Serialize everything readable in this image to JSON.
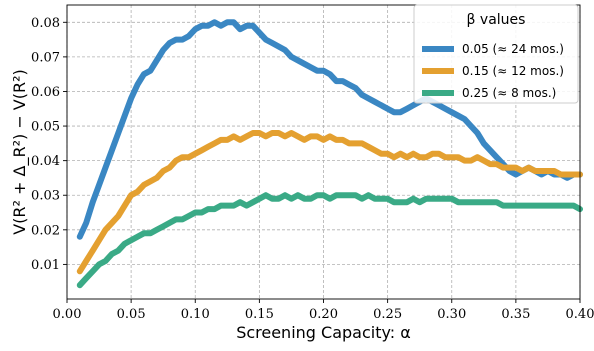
{
  "chart_data": {
    "type": "line",
    "title": "",
    "xlabel": "Screening Capacity: α",
    "ylabel": "V(R² + Δ_R²) − V(R²)",
    "xlim": [
      0.0,
      0.4
    ],
    "ylim": [
      0.0,
      0.085
    ],
    "xticks": [
      "0.00",
      "0.05",
      "0.10",
      "0.15",
      "0.20",
      "0.25",
      "0.30",
      "0.35",
      "0.40"
    ],
    "yticks": [
      "0.01",
      "0.02",
      "0.03",
      "0.04",
      "0.05",
      "0.06",
      "0.07",
      "0.08"
    ],
    "grid": true,
    "legend": {
      "title": "β values",
      "placement": "top-right",
      "entries": [
        "0.05 (≈ 24 mos.)",
        "0.15 (≈ 12 mos.)",
        "0.25 (≈ 8 mos.)"
      ]
    },
    "series": [
      {
        "name": "0.05 (≈ 24 mos.)",
        "color": "#3a87c3",
        "x": [
          0.01,
          0.015,
          0.02,
          0.025,
          0.03,
          0.035,
          0.04,
          0.045,
          0.05,
          0.055,
          0.06,
          0.065,
          0.07,
          0.075,
          0.08,
          0.085,
          0.09,
          0.095,
          0.1,
          0.105,
          0.11,
          0.115,
          0.12,
          0.125,
          0.13,
          0.135,
          0.14,
          0.145,
          0.15,
          0.155,
          0.16,
          0.165,
          0.17,
          0.175,
          0.18,
          0.185,
          0.19,
          0.195,
          0.2,
          0.205,
          0.21,
          0.215,
          0.22,
          0.225,
          0.23,
          0.235,
          0.24,
          0.245,
          0.25,
          0.255,
          0.26,
          0.265,
          0.27,
          0.275,
          0.28,
          0.285,
          0.29,
          0.295,
          0.3,
          0.305,
          0.31,
          0.315,
          0.32,
          0.325,
          0.33,
          0.335,
          0.34,
          0.345,
          0.35,
          0.355,
          0.36,
          0.365,
          0.37,
          0.375,
          0.38,
          0.385,
          0.39,
          0.395,
          0.4
        ],
        "y": [
          0.018,
          0.022,
          0.028,
          0.033,
          0.038,
          0.043,
          0.048,
          0.053,
          0.058,
          0.062,
          0.065,
          0.066,
          0.069,
          0.072,
          0.074,
          0.075,
          0.075,
          0.076,
          0.078,
          0.079,
          0.079,
          0.08,
          0.079,
          0.08,
          0.08,
          0.078,
          0.079,
          0.079,
          0.077,
          0.075,
          0.074,
          0.073,
          0.072,
          0.07,
          0.069,
          0.068,
          0.067,
          0.066,
          0.066,
          0.065,
          0.063,
          0.063,
          0.062,
          0.061,
          0.059,
          0.058,
          0.057,
          0.056,
          0.055,
          0.054,
          0.054,
          0.055,
          0.056,
          0.057,
          0.058,
          0.057,
          0.056,
          0.055,
          0.054,
          0.053,
          0.052,
          0.05,
          0.048,
          0.045,
          0.043,
          0.041,
          0.039,
          0.037,
          0.036,
          0.037,
          0.038,
          0.037,
          0.036,
          0.037,
          0.036,
          0.036,
          0.035,
          0.036,
          0.036
        ]
      },
      {
        "name": "0.15 (≈ 12 mos.)",
        "color": "#e4a030",
        "x": [
          0.01,
          0.015,
          0.02,
          0.025,
          0.03,
          0.035,
          0.04,
          0.045,
          0.05,
          0.055,
          0.06,
          0.065,
          0.07,
          0.075,
          0.08,
          0.085,
          0.09,
          0.095,
          0.1,
          0.105,
          0.11,
          0.115,
          0.12,
          0.125,
          0.13,
          0.135,
          0.14,
          0.145,
          0.15,
          0.155,
          0.16,
          0.165,
          0.17,
          0.175,
          0.18,
          0.185,
          0.19,
          0.195,
          0.2,
          0.205,
          0.21,
          0.215,
          0.22,
          0.225,
          0.23,
          0.235,
          0.24,
          0.245,
          0.25,
          0.255,
          0.26,
          0.265,
          0.27,
          0.275,
          0.28,
          0.285,
          0.29,
          0.295,
          0.3,
          0.305,
          0.31,
          0.315,
          0.32,
          0.325,
          0.33,
          0.335,
          0.34,
          0.345,
          0.35,
          0.355,
          0.36,
          0.365,
          0.37,
          0.375,
          0.38,
          0.385,
          0.39,
          0.395,
          0.4
        ],
        "y": [
          0.008,
          0.011,
          0.014,
          0.017,
          0.02,
          0.022,
          0.024,
          0.027,
          0.03,
          0.031,
          0.033,
          0.034,
          0.035,
          0.037,
          0.038,
          0.04,
          0.041,
          0.041,
          0.042,
          0.043,
          0.044,
          0.045,
          0.046,
          0.046,
          0.047,
          0.046,
          0.047,
          0.048,
          0.048,
          0.047,
          0.048,
          0.048,
          0.047,
          0.048,
          0.047,
          0.046,
          0.047,
          0.047,
          0.046,
          0.047,
          0.046,
          0.046,
          0.045,
          0.045,
          0.045,
          0.044,
          0.043,
          0.042,
          0.042,
          0.041,
          0.042,
          0.041,
          0.042,
          0.041,
          0.041,
          0.042,
          0.042,
          0.041,
          0.041,
          0.041,
          0.04,
          0.04,
          0.041,
          0.04,
          0.039,
          0.039,
          0.038,
          0.038,
          0.038,
          0.037,
          0.038,
          0.037,
          0.037,
          0.037,
          0.037,
          0.036,
          0.036,
          0.036,
          0.036
        ]
      },
      {
        "name": "0.25 (≈ 8 mos.)",
        "color": "#3aaa86",
        "x": [
          0.01,
          0.015,
          0.02,
          0.025,
          0.03,
          0.035,
          0.04,
          0.045,
          0.05,
          0.055,
          0.06,
          0.065,
          0.07,
          0.075,
          0.08,
          0.085,
          0.09,
          0.095,
          0.1,
          0.105,
          0.11,
          0.115,
          0.12,
          0.125,
          0.13,
          0.135,
          0.14,
          0.145,
          0.15,
          0.155,
          0.16,
          0.165,
          0.17,
          0.175,
          0.18,
          0.185,
          0.19,
          0.195,
          0.2,
          0.205,
          0.21,
          0.215,
          0.22,
          0.225,
          0.23,
          0.235,
          0.24,
          0.245,
          0.25,
          0.255,
          0.26,
          0.265,
          0.27,
          0.275,
          0.28,
          0.285,
          0.29,
          0.295,
          0.3,
          0.305,
          0.31,
          0.315,
          0.32,
          0.325,
          0.33,
          0.335,
          0.34,
          0.345,
          0.35,
          0.355,
          0.36,
          0.365,
          0.37,
          0.375,
          0.38,
          0.385,
          0.39,
          0.395,
          0.4
        ],
        "y": [
          0.004,
          0.006,
          0.008,
          0.01,
          0.011,
          0.013,
          0.014,
          0.016,
          0.017,
          0.018,
          0.019,
          0.019,
          0.02,
          0.021,
          0.022,
          0.023,
          0.023,
          0.024,
          0.025,
          0.025,
          0.026,
          0.026,
          0.027,
          0.027,
          0.027,
          0.028,
          0.027,
          0.028,
          0.029,
          0.03,
          0.029,
          0.029,
          0.03,
          0.029,
          0.03,
          0.029,
          0.029,
          0.03,
          0.03,
          0.029,
          0.03,
          0.03,
          0.03,
          0.03,
          0.029,
          0.03,
          0.029,
          0.029,
          0.029,
          0.028,
          0.028,
          0.028,
          0.029,
          0.028,
          0.029,
          0.029,
          0.029,
          0.029,
          0.029,
          0.028,
          0.028,
          0.028,
          0.028,
          0.028,
          0.028,
          0.028,
          0.027,
          0.027,
          0.027,
          0.027,
          0.027,
          0.027,
          0.027,
          0.027,
          0.027,
          0.027,
          0.027,
          0.027,
          0.026
        ]
      }
    ]
  }
}
